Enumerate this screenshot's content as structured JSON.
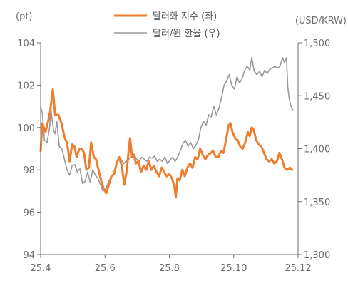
{
  "chart_data": {
    "type": "line",
    "y_left_unit": "(pt)",
    "y_right_unit": "(USD/KRW)",
    "x_ticks": [
      "25.4",
      "25.6",
      "25.8",
      "25.10",
      "25.12"
    ],
    "x_range": [
      0,
      8
    ],
    "y_left_ticks": [
      "94",
      "96",
      "98",
      "100",
      "102",
      "104"
    ],
    "y_left_range": [
      94,
      104
    ],
    "y_right_ticks": [
      "1,300",
      "1,350",
      "1,400",
      "1,450",
      "1,500"
    ],
    "y_right_range": [
      1300,
      1500
    ],
    "series": [
      {
        "name": "달러화 지수 (좌)",
        "axis": "left",
        "color": "#ee7d2d",
        "points": [
          [
            0.0,
            98.9
          ],
          [
            0.05,
            100.2
          ],
          [
            0.15,
            99.8
          ],
          [
            0.25,
            100.4
          ],
          [
            0.3,
            100.8
          ],
          [
            0.38,
            101.8
          ],
          [
            0.45,
            100.6
          ],
          [
            0.55,
            100.6
          ],
          [
            0.65,
            100.2
          ],
          [
            0.75,
            99.5
          ],
          [
            0.82,
            99.3
          ],
          [
            0.9,
            98.4
          ],
          [
            0.98,
            99.2
          ],
          [
            1.05,
            99.1
          ],
          [
            1.12,
            98.6
          ],
          [
            1.2,
            99.0
          ],
          [
            1.28,
            99.0
          ],
          [
            1.35,
            98.8
          ],
          [
            1.42,
            98.0
          ],
          [
            1.5,
            98.1
          ],
          [
            1.57,
            99.3
          ],
          [
            1.65,
            98.6
          ],
          [
            1.72,
            98.5
          ],
          [
            1.8,
            98.0
          ],
          [
            1.88,
            97.5
          ],
          [
            1.96,
            97.1
          ],
          [
            2.04,
            96.9
          ],
          [
            2.12,
            97.3
          ],
          [
            2.2,
            97.7
          ],
          [
            2.28,
            97.8
          ],
          [
            2.36,
            98.3
          ],
          [
            2.44,
            98.6
          ],
          [
            2.52,
            98.2
          ],
          [
            2.6,
            97.3
          ],
          [
            2.68,
            98.0
          ],
          [
            2.74,
            99.0
          ],
          [
            2.78,
            99.5
          ],
          [
            2.84,
            98.6
          ],
          [
            2.9,
            98.7
          ],
          [
            2.96,
            98.3
          ],
          [
            3.04,
            98.4
          ],
          [
            3.12,
            97.9
          ],
          [
            3.2,
            98.2
          ],
          [
            3.28,
            98.0
          ],
          [
            3.36,
            98.4
          ],
          [
            3.44,
            98.0
          ],
          [
            3.52,
            98.2
          ],
          [
            3.6,
            97.9
          ],
          [
            3.68,
            97.7
          ],
          [
            3.76,
            98.1
          ],
          [
            3.84,
            97.9
          ],
          [
            3.92,
            97.7
          ],
          [
            4.0,
            97.8
          ],
          [
            4.08,
            97.6
          ],
          [
            4.16,
            97.2
          ],
          [
            4.2,
            96.7
          ],
          [
            4.25,
            97.6
          ],
          [
            4.32,
            97.5
          ],
          [
            4.4,
            98.0
          ],
          [
            4.48,
            97.7
          ],
          [
            4.56,
            98.1
          ],
          [
            4.64,
            98.3
          ],
          [
            4.72,
            98.1
          ],
          [
            4.8,
            98.6
          ],
          [
            4.88,
            98.5
          ],
          [
            4.96,
            99.0
          ],
          [
            5.04,
            98.7
          ],
          [
            5.12,
            98.5
          ],
          [
            5.2,
            98.7
          ],
          [
            5.28,
            98.8
          ],
          [
            5.36,
            98.9
          ],
          [
            5.44,
            98.6
          ],
          [
            5.52,
            98.6
          ],
          [
            5.6,
            98.9
          ],
          [
            5.68,
            98.8
          ],
          [
            5.76,
            99.4
          ],
          [
            5.84,
            100.1
          ],
          [
            5.9,
            100.2
          ],
          [
            5.96,
            99.8
          ],
          [
            6.04,
            99.5
          ],
          [
            6.12,
            99.4
          ],
          [
            6.2,
            99.1
          ],
          [
            6.28,
            99.0
          ],
          [
            6.36,
            99.3
          ],
          [
            6.44,
            99.8
          ],
          [
            6.5,
            99.6
          ],
          [
            6.56,
            100.0
          ],
          [
            6.62,
            99.9
          ],
          [
            6.7,
            99.4
          ],
          [
            6.78,
            99.2
          ],
          [
            6.86,
            99.1
          ],
          [
            6.94,
            98.8
          ],
          [
            7.02,
            98.5
          ],
          [
            7.1,
            98.4
          ],
          [
            7.18,
            98.5
          ],
          [
            7.26,
            98.3
          ],
          [
            7.34,
            98.4
          ],
          [
            7.42,
            98.8
          ],
          [
            7.5,
            98.5
          ],
          [
            7.58,
            98.1
          ],
          [
            7.66,
            98.0
          ],
          [
            7.74,
            98.1
          ],
          [
            7.82,
            98.0
          ]
        ]
      },
      {
        "name": "달러/원 환율 (우)",
        "axis": "right",
        "color": "#999999",
        "points": [
          [
            0.0,
            1440
          ],
          [
            0.05,
            1434
          ],
          [
            0.12,
            1408
          ],
          [
            0.2,
            1406
          ],
          [
            0.28,
            1420
          ],
          [
            0.32,
            1436
          ],
          [
            0.4,
            1418
          ],
          [
            0.45,
            1414
          ],
          [
            0.5,
            1426
          ],
          [
            0.58,
            1402
          ],
          [
            0.66,
            1400
          ],
          [
            0.74,
            1390
          ],
          [
            0.82,
            1380
          ],
          [
            0.9,
            1375
          ],
          [
            0.98,
            1384
          ],
          [
            1.06,
            1385
          ],
          [
            1.14,
            1378
          ],
          [
            1.22,
            1381
          ],
          [
            1.3,
            1367
          ],
          [
            1.38,
            1369
          ],
          [
            1.46,
            1378
          ],
          [
            1.54,
            1368
          ],
          [
            1.62,
            1380
          ],
          [
            1.7,
            1375
          ],
          [
            1.78,
            1372
          ],
          [
            1.86,
            1366
          ],
          [
            1.94,
            1360
          ],
          [
            2.02,
            1362
          ],
          [
            2.1,
            1368
          ],
          [
            2.18,
            1373
          ],
          [
            2.26,
            1375
          ],
          [
            2.34,
            1382
          ],
          [
            2.42,
            1392
          ],
          [
            2.5,
            1390
          ],
          [
            2.58,
            1386
          ],
          [
            2.66,
            1388
          ],
          [
            2.74,
            1390
          ],
          [
            2.82,
            1392
          ],
          [
            2.9,
            1395
          ],
          [
            2.98,
            1390
          ],
          [
            3.06,
            1388
          ],
          [
            3.14,
            1392
          ],
          [
            3.22,
            1390
          ],
          [
            3.3,
            1388
          ],
          [
            3.38,
            1392
          ],
          [
            3.46,
            1391
          ],
          [
            3.54,
            1393
          ],
          [
            3.62,
            1388
          ],
          [
            3.7,
            1390
          ],
          [
            3.78,
            1388
          ],
          [
            3.86,
            1392
          ],
          [
            3.94,
            1386
          ],
          [
            4.02,
            1389
          ],
          [
            4.1,
            1392
          ],
          [
            4.18,
            1388
          ],
          [
            4.26,
            1392
          ],
          [
            4.34,
            1398
          ],
          [
            4.42,
            1405
          ],
          [
            4.5,
            1408
          ],
          [
            4.58,
            1402
          ],
          [
            4.66,
            1406
          ],
          [
            4.74,
            1400
          ],
          [
            4.82,
            1403
          ],
          [
            4.9,
            1408
          ],
          [
            4.98,
            1420
          ],
          [
            5.06,
            1426
          ],
          [
            5.14,
            1422
          ],
          [
            5.22,
            1432
          ],
          [
            5.3,
            1430
          ],
          [
            5.38,
            1440
          ],
          [
            5.46,
            1432
          ],
          [
            5.54,
            1438
          ],
          [
            5.62,
            1448
          ],
          [
            5.7,
            1460
          ],
          [
            5.78,
            1464
          ],
          [
            5.86,
            1470
          ],
          [
            5.94,
            1460
          ],
          [
            6.02,
            1456
          ],
          [
            6.1,
            1468
          ],
          [
            6.18,
            1462
          ],
          [
            6.26,
            1466
          ],
          [
            6.34,
            1474
          ],
          [
            6.42,
            1478
          ],
          [
            6.5,
            1474
          ],
          [
            6.56,
            1486
          ],
          [
            6.64,
            1473
          ],
          [
            6.72,
            1470
          ],
          [
            6.8,
            1473
          ],
          [
            6.88,
            1468
          ],
          [
            6.96,
            1474
          ],
          [
            7.04,
            1471
          ],
          [
            7.12,
            1475
          ],
          [
            7.2,
            1476
          ],
          [
            7.28,
            1478
          ],
          [
            7.36,
            1476
          ],
          [
            7.44,
            1478
          ],
          [
            7.52,
            1486
          ],
          [
            7.58,
            1481
          ],
          [
            7.64,
            1486
          ],
          [
            7.68,
            1458
          ],
          [
            7.72,
            1448
          ],
          [
            7.78,
            1440
          ],
          [
            7.84,
            1436
          ]
        ]
      }
    ]
  }
}
